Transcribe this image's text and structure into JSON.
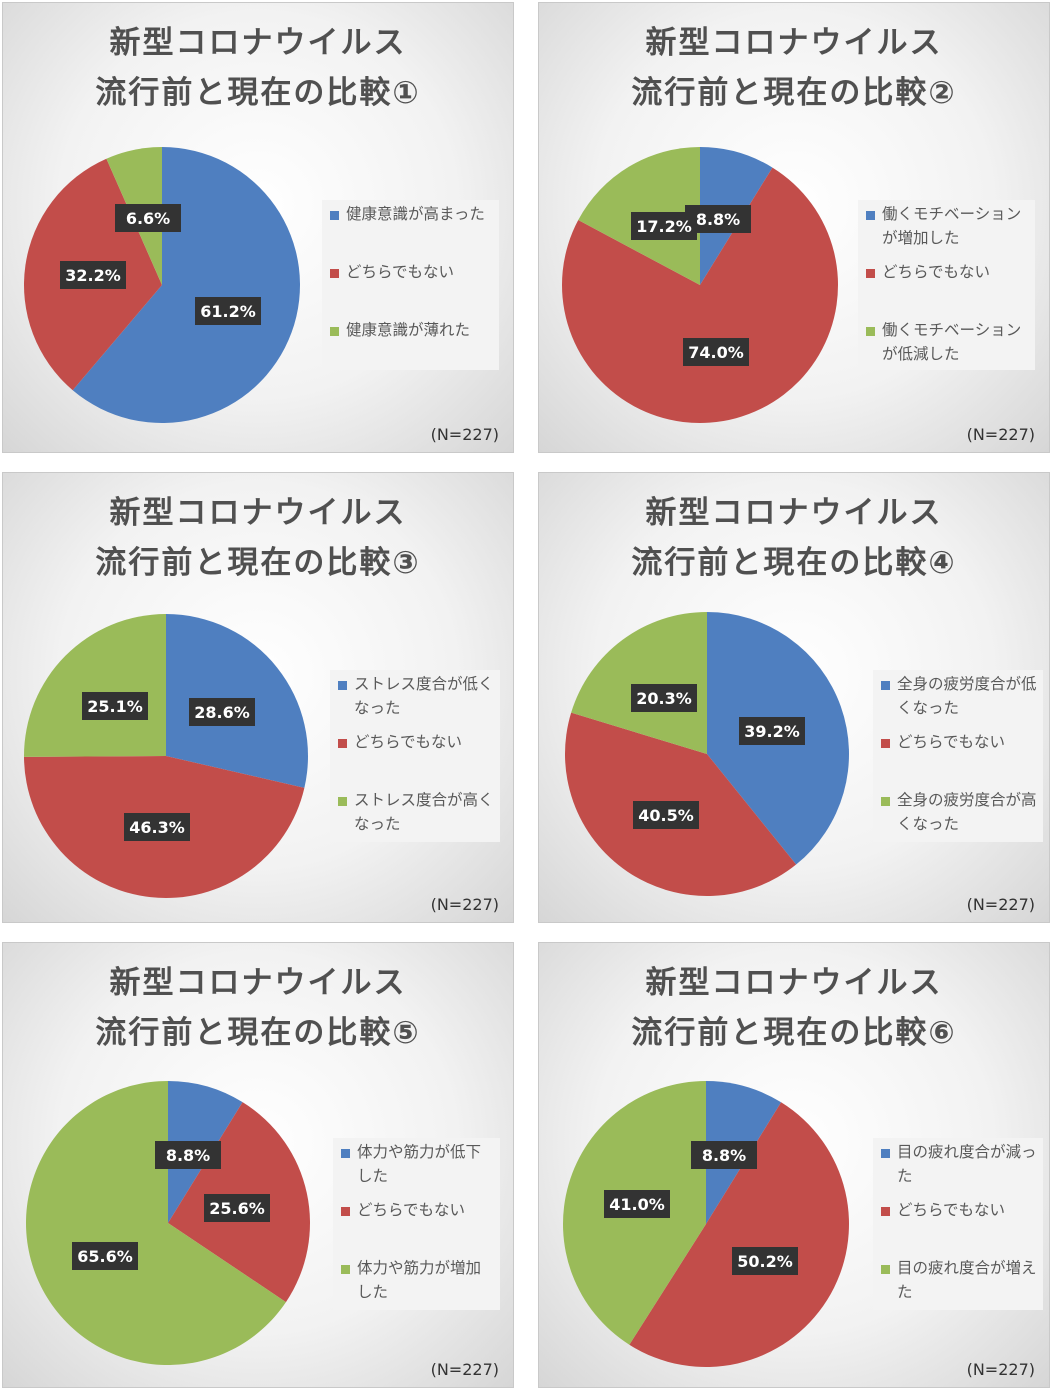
{
  "colors": {
    "blue": "#4f7fc0",
    "red": "#c24d4a",
    "green": "#9abb59",
    "label_bg": "#333333"
  },
  "charts": [
    {
      "title_line1": "新型コロナウイルス",
      "title_line2": "流行前と現在の比較①",
      "n_label": "(N=227)",
      "legend": [
        "健康意識が高まった",
        "どちらでもない",
        "健康意識が薄れた"
      ],
      "value_labels": [
        "61.2%",
        "32.2%",
        "6.6%"
      ]
    },
    {
      "title_line1": "新型コロナウイルス",
      "title_line2": "流行前と現在の比較②",
      "n_label": "(N=227)",
      "legend": [
        "働くモチベーションが増加した",
        "どちらでもない",
        "働くモチベーションが低減した"
      ],
      "value_labels": [
        "8.8%",
        "74.0%",
        "17.2%"
      ]
    },
    {
      "title_line1": "新型コロナウイルス",
      "title_line2": "流行前と現在の比較③",
      "n_label": "(N=227)",
      "legend": [
        "ストレス度合が低くなった",
        "どちらでもない",
        "ストレス度合が高くなった"
      ],
      "value_labels": [
        "28.6%",
        "46.3%",
        "25.1%"
      ]
    },
    {
      "title_line1": "新型コロナウイルス",
      "title_line2": "流行前と現在の比較④",
      "n_label": "(N=227)",
      "legend": [
        "全身の疲労度合が低くなった",
        "どちらでもない",
        "全身の疲労度合が高くなった"
      ],
      "value_labels": [
        "39.2%",
        "40.5%",
        "20.3%"
      ]
    },
    {
      "title_line1": "新型コロナウイルス",
      "title_line2": "流行前と現在の比較⑤",
      "n_label": "(N=227)",
      "legend": [
        "体力や筋力が低下した",
        "どちらでもない",
        "体力や筋力が増加した"
      ],
      "value_labels": [
        "8.8%",
        "25.6%",
        "65.6%"
      ]
    },
    {
      "title_line1": "新型コロナウイルス",
      "title_line2": "流行前と現在の比較⑥",
      "n_label": "(N=227)",
      "legend": [
        "目の疲れ度合が減った",
        "どちらでもない",
        "目の疲れ度合が増えた"
      ],
      "value_labels": [
        "8.8%",
        "50.2%",
        "41.0%"
      ]
    }
  ],
  "chart_data": [
    {
      "type": "pie",
      "title": "新型コロナウイルス 流行前と現在の比較①",
      "categories": [
        "健康意識が高まった",
        "どちらでもない",
        "健康意識が薄れた"
      ],
      "values": [
        61.2,
        32.2,
        6.6
      ]
    },
    {
      "type": "pie",
      "title": "新型コロナウイルス 流行前と現在の比較②",
      "categories": [
        "働くモチベーションが増加した",
        "どちらでもない",
        "働くモチベーションが低減した"
      ],
      "values": [
        8.8,
        74.0,
        17.2
      ]
    },
    {
      "type": "pie",
      "title": "新型コロナウイルス 流行前と現在の比較③",
      "categories": [
        "ストレス度合が低くなった",
        "どちらでもない",
        "ストレス度合が高くなった"
      ],
      "values": [
        28.6,
        46.3,
        25.1
      ]
    },
    {
      "type": "pie",
      "title": "新型コロナウイルス 流行前と現在の比較④",
      "categories": [
        "全身の疲労度合が低くなった",
        "どちらでもない",
        "全身の疲労度合が高くなった"
      ],
      "values": [
        39.2,
        40.5,
        20.3
      ]
    },
    {
      "type": "pie",
      "title": "新型コロナウイルス 流行前と現在の比較⑤",
      "categories": [
        "体力や筋力が低下した",
        "どちらでもない",
        "体力や筋力が増加した"
      ],
      "values": [
        8.8,
        25.6,
        65.6
      ]
    },
    {
      "type": "pie",
      "title": "新型コロナウイルス 流行前と現在の比較⑥",
      "categories": [
        "目の疲れ度合が減った",
        "どちらでもない",
        "目の疲れ度合が増えた"
      ],
      "values": [
        8.8,
        50.2,
        41.0
      ]
    }
  ]
}
